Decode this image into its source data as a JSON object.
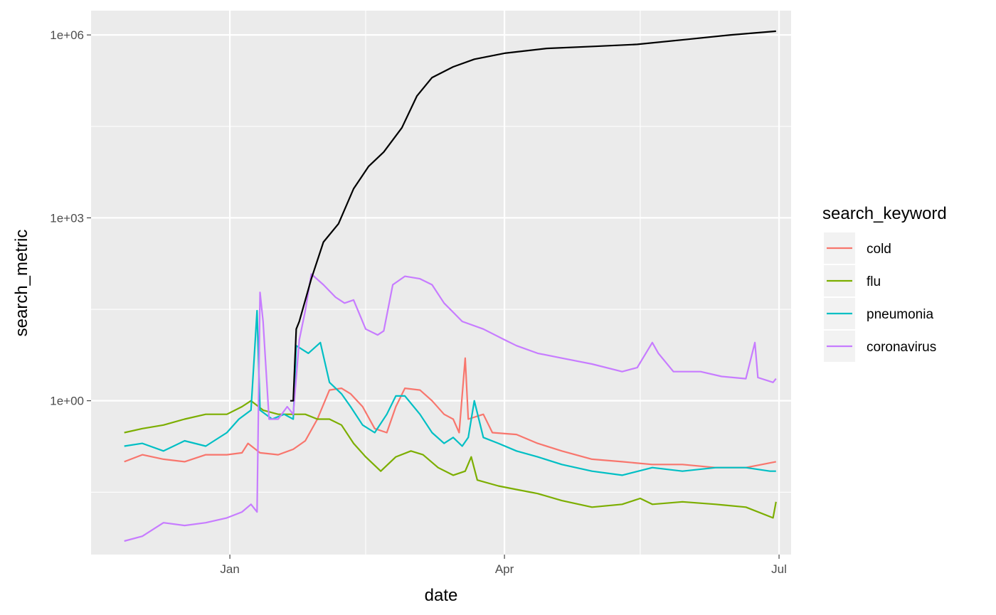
{
  "chart_data": {
    "type": "line",
    "title": "",
    "xlabel": "date",
    "ylabel": "search_metric",
    "y_scale": "log10",
    "ylim": [
      0.003,
      2500000
    ],
    "xlim": [
      "2019-11-16",
      "2020-07-05"
    ],
    "x_ticks": [
      {
        "date": "2020-01-01",
        "label": "Jan"
      },
      {
        "date": "2020-04-01",
        "label": "Apr"
      },
      {
        "date": "2020-07-01",
        "label": "Jul"
      }
    ],
    "x_minor_ticks": [
      "2020-02-15",
      "2020-05-16"
    ],
    "y_ticks": [
      {
        "value": 1,
        "label": "1e+00"
      },
      {
        "value": 1000,
        "label": "1e+03"
      },
      {
        "value": 1000000,
        "label": "1e+06"
      }
    ],
    "y_minor_ticks": [
      0.03162,
      31.62,
      31623
    ],
    "grid": true,
    "panel_background": "#EBEBEB",
    "legend": {
      "title": "search_keyword",
      "position": "right"
    },
    "series": [
      {
        "name": "cold",
        "color": "#F8766D",
        "points": [
          [
            "2019-11-27",
            0.1
          ],
          [
            "2019-12-03",
            0.13
          ],
          [
            "2019-12-10",
            0.11
          ],
          [
            "2019-12-17",
            0.1
          ],
          [
            "2019-12-24",
            0.13
          ],
          [
            "2019-12-31",
            0.13
          ],
          [
            "2020-01-05",
            0.14
          ],
          [
            "2020-01-07",
            0.2
          ],
          [
            "2020-01-11",
            0.14
          ],
          [
            "2020-01-17",
            0.13
          ],
          [
            "2020-01-22",
            0.16
          ],
          [
            "2020-01-26",
            0.22
          ],
          [
            "2020-01-30",
            0.5
          ],
          [
            "2020-02-03",
            1.5
          ],
          [
            "2020-02-07",
            1.6
          ],
          [
            "2020-02-10",
            1.3
          ],
          [
            "2020-02-14",
            0.8
          ],
          [
            "2020-02-18",
            0.35
          ],
          [
            "2020-02-22",
            0.3
          ],
          [
            "2020-02-25",
            0.8
          ],
          [
            "2020-02-28",
            1.6
          ],
          [
            "2020-03-04",
            1.5
          ],
          [
            "2020-03-08",
            1.0
          ],
          [
            "2020-03-12",
            0.6
          ],
          [
            "2020-03-15",
            0.5
          ],
          [
            "2020-03-17",
            0.3
          ],
          [
            "2020-03-19",
            5.0
          ],
          [
            "2020-03-20",
            0.5
          ],
          [
            "2020-03-25",
            0.6
          ],
          [
            "2020-03-28",
            0.3
          ],
          [
            "2020-04-05",
            0.28
          ],
          [
            "2020-04-12",
            0.2
          ],
          [
            "2020-04-20",
            0.15
          ],
          [
            "2020-04-30",
            0.11
          ],
          [
            "2020-05-10",
            0.1
          ],
          [
            "2020-05-20",
            0.09
          ],
          [
            "2020-05-30",
            0.09
          ],
          [
            "2020-06-10",
            0.08
          ],
          [
            "2020-06-20",
            0.08
          ],
          [
            "2020-06-30",
            0.1
          ]
        ]
      },
      {
        "name": "flu",
        "color": "#7CAE00",
        "points": [
          [
            "2019-11-27",
            0.3
          ],
          [
            "2019-12-03",
            0.35
          ],
          [
            "2019-12-10",
            0.4
          ],
          [
            "2019-12-17",
            0.5
          ],
          [
            "2019-12-24",
            0.6
          ],
          [
            "2019-12-31",
            0.6
          ],
          [
            "2020-01-05",
            0.8
          ],
          [
            "2020-01-08",
            1.0
          ],
          [
            "2020-01-12",
            0.7
          ],
          [
            "2020-01-17",
            0.6
          ],
          [
            "2020-01-22",
            0.6
          ],
          [
            "2020-01-26",
            0.6
          ],
          [
            "2020-01-30",
            0.5
          ],
          [
            "2020-02-03",
            0.5
          ],
          [
            "2020-02-07",
            0.4
          ],
          [
            "2020-02-11",
            0.2
          ],
          [
            "2020-02-15",
            0.12
          ],
          [
            "2020-02-20",
            0.07
          ],
          [
            "2020-02-25",
            0.12
          ],
          [
            "2020-03-01",
            0.15
          ],
          [
            "2020-03-05",
            0.13
          ],
          [
            "2020-03-10",
            0.08
          ],
          [
            "2020-03-15",
            0.06
          ],
          [
            "2020-03-19",
            0.07
          ],
          [
            "2020-03-21",
            0.12
          ],
          [
            "2020-03-23",
            0.05
          ],
          [
            "2020-03-30",
            0.04
          ],
          [
            "2020-04-05",
            0.035
          ],
          [
            "2020-04-12",
            0.03
          ],
          [
            "2020-04-20",
            0.023
          ],
          [
            "2020-04-30",
            0.018
          ],
          [
            "2020-05-10",
            0.02
          ],
          [
            "2020-05-16",
            0.025
          ],
          [
            "2020-05-20",
            0.02
          ],
          [
            "2020-05-30",
            0.022
          ],
          [
            "2020-06-10",
            0.02
          ],
          [
            "2020-06-20",
            0.018
          ],
          [
            "2020-06-29",
            0.012
          ],
          [
            "2020-06-30",
            0.022
          ]
        ]
      },
      {
        "name": "pneumonia",
        "color": "#00BFC4",
        "points": [
          [
            "2019-11-27",
            0.18
          ],
          [
            "2019-12-03",
            0.2
          ],
          [
            "2019-12-10",
            0.15
          ],
          [
            "2019-12-17",
            0.22
          ],
          [
            "2019-12-24",
            0.18
          ],
          [
            "2019-12-31",
            0.3
          ],
          [
            "2020-01-04",
            0.5
          ],
          [
            "2020-01-08",
            0.7
          ],
          [
            "2020-01-10",
            30.0
          ],
          [
            "2020-01-11",
            0.7
          ],
          [
            "2020-01-15",
            0.5
          ],
          [
            "2020-01-19",
            0.6
          ],
          [
            "2020-01-22",
            0.5
          ],
          [
            "2020-01-23",
            8.0
          ],
          [
            "2020-01-27",
            6.0
          ],
          [
            "2020-01-31",
            9.0
          ],
          [
            "2020-02-03",
            2.0
          ],
          [
            "2020-02-07",
            1.3
          ],
          [
            "2020-02-10",
            0.8
          ],
          [
            "2020-02-14",
            0.4
          ],
          [
            "2020-02-18",
            0.3
          ],
          [
            "2020-02-22",
            0.6
          ],
          [
            "2020-02-25",
            1.2
          ],
          [
            "2020-02-28",
            1.2
          ],
          [
            "2020-03-04",
            0.6
          ],
          [
            "2020-03-08",
            0.3
          ],
          [
            "2020-03-12",
            0.2
          ],
          [
            "2020-03-15",
            0.25
          ],
          [
            "2020-03-18",
            0.18
          ],
          [
            "2020-03-20",
            0.25
          ],
          [
            "2020-03-22",
            1.0
          ],
          [
            "2020-03-25",
            0.25
          ],
          [
            "2020-03-30",
            0.2
          ],
          [
            "2020-04-05",
            0.15
          ],
          [
            "2020-04-12",
            0.12
          ],
          [
            "2020-04-20",
            0.09
          ],
          [
            "2020-04-30",
            0.07
          ],
          [
            "2020-05-10",
            0.06
          ],
          [
            "2020-05-20",
            0.08
          ],
          [
            "2020-05-30",
            0.07
          ],
          [
            "2020-06-10",
            0.08
          ],
          [
            "2020-06-20",
            0.08
          ],
          [
            "2020-06-28",
            0.07
          ],
          [
            "2020-06-30",
            0.07
          ]
        ]
      },
      {
        "name": "coronavirus",
        "color": "#C77CFF",
        "points": [
          [
            "2019-11-27",
            0.005
          ],
          [
            "2019-12-03",
            0.006
          ],
          [
            "2019-12-10",
            0.01
          ],
          [
            "2019-12-17",
            0.009
          ],
          [
            "2019-12-24",
            0.01
          ],
          [
            "2019-12-31",
            0.012
          ],
          [
            "2020-01-05",
            0.015
          ],
          [
            "2020-01-08",
            0.02
          ],
          [
            "2020-01-10",
            0.015
          ],
          [
            "2020-01-11",
            60.0
          ],
          [
            "2020-01-12",
            20.0
          ],
          [
            "2020-01-14",
            0.5
          ],
          [
            "2020-01-17",
            0.5
          ],
          [
            "2020-01-20",
            0.8
          ],
          [
            "2020-01-22",
            0.6
          ],
          [
            "2020-01-24",
            10.0
          ],
          [
            "2020-01-26",
            30.0
          ],
          [
            "2020-01-28",
            120.0
          ],
          [
            "2020-02-01",
            80.0
          ],
          [
            "2020-02-05",
            50.0
          ],
          [
            "2020-02-08",
            40.0
          ],
          [
            "2020-02-11",
            45.0
          ],
          [
            "2020-02-15",
            15.0
          ],
          [
            "2020-02-19",
            12.0
          ],
          [
            "2020-02-21",
            14.0
          ],
          [
            "2020-02-24",
            80.0
          ],
          [
            "2020-02-28",
            110.0
          ],
          [
            "2020-03-04",
            100.0
          ],
          [
            "2020-03-08",
            80.0
          ],
          [
            "2020-03-12",
            40.0
          ],
          [
            "2020-03-18",
            20.0
          ],
          [
            "2020-03-25",
            15.0
          ],
          [
            "2020-04-01",
            10.0
          ],
          [
            "2020-04-05",
            8.0
          ],
          [
            "2020-04-12",
            6.0
          ],
          [
            "2020-04-20",
            5.0
          ],
          [
            "2020-04-30",
            4.0
          ],
          [
            "2020-05-10",
            3.0
          ],
          [
            "2020-05-15",
            3.5
          ],
          [
            "2020-05-20",
            9.0
          ],
          [
            "2020-05-22",
            6.0
          ],
          [
            "2020-05-27",
            3.0
          ],
          [
            "2020-06-05",
            3.0
          ],
          [
            "2020-06-12",
            2.5
          ],
          [
            "2020-06-20",
            2.3
          ],
          [
            "2020-06-23",
            9.0
          ],
          [
            "2020-06-24",
            2.4
          ],
          [
            "2020-06-29",
            2.0
          ],
          [
            "2020-06-30",
            2.3
          ]
        ]
      },
      {
        "name": "",
        "color": "#000000",
        "points": [
          [
            "2020-01-21",
            1
          ],
          [
            "2020-01-22",
            1
          ],
          [
            "2020-01-23",
            15
          ],
          [
            "2020-01-24",
            20
          ],
          [
            "2020-01-28",
            100
          ],
          [
            "2020-02-01",
            400
          ],
          [
            "2020-02-06",
            800
          ],
          [
            "2020-02-11",
            3000
          ],
          [
            "2020-02-16",
            7000
          ],
          [
            "2020-02-21",
            12000
          ],
          [
            "2020-02-27",
            30000
          ],
          [
            "2020-03-03",
            100000
          ],
          [
            "2020-03-08",
            200000
          ],
          [
            "2020-03-15",
            300000
          ],
          [
            "2020-03-22",
            400000
          ],
          [
            "2020-04-01",
            500000
          ],
          [
            "2020-04-15",
            600000
          ],
          [
            "2020-05-01",
            650000
          ],
          [
            "2020-05-15",
            700000
          ],
          [
            "2020-06-01",
            850000
          ],
          [
            "2020-06-15",
            1000000
          ],
          [
            "2020-06-30",
            1150000
          ]
        ]
      }
    ]
  }
}
